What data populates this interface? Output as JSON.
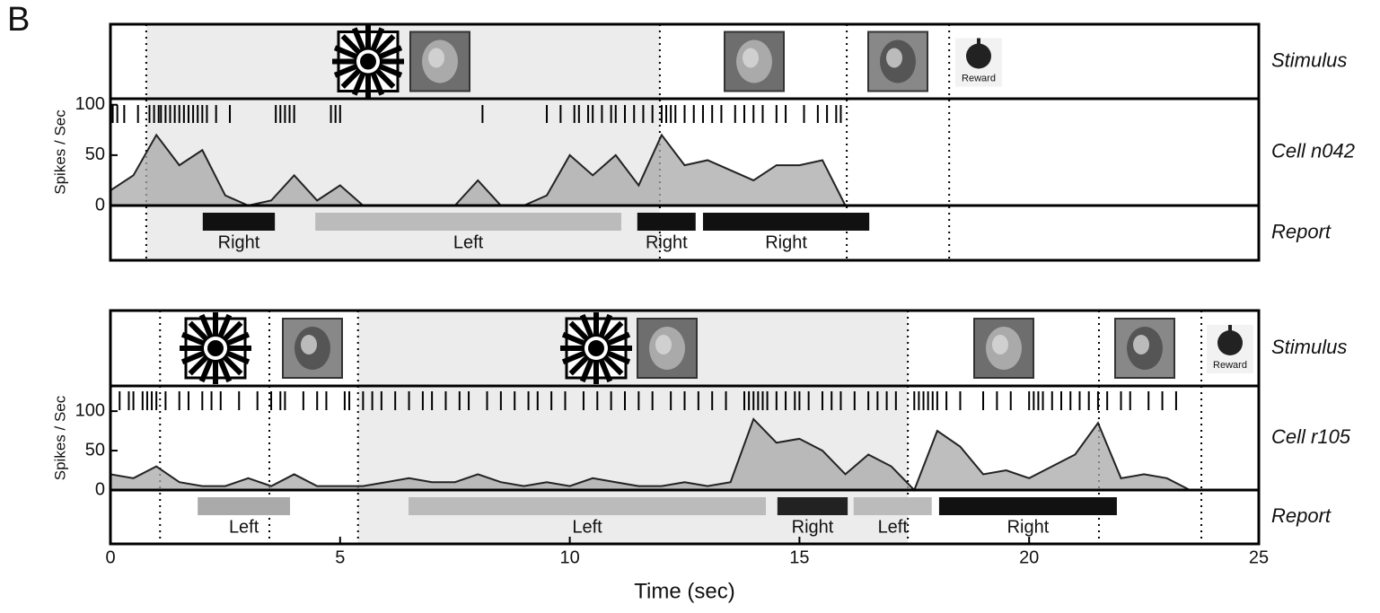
{
  "panel_label": "B",
  "chart_data": [
    {
      "type": "raster_rate",
      "row_labels": [
        "Stimulus",
        "Cell n042",
        "Report"
      ],
      "reward_label": "Reward",
      "ylabel": "Spikes / Sec",
      "xlim": [
        0,
        25
      ],
      "ylim": [
        0,
        106
      ],
      "yticks": [
        0,
        50,
        100
      ],
      "events": [
        0.78,
        11.96,
        16.03,
        18.26
      ],
      "shaded": [
        0.78,
        11.96
      ],
      "spikes": [
        0.05,
        0.15,
        0.3,
        0.6,
        0.85,
        0.95,
        1.05,
        1.1,
        1.2,
        1.3,
        1.4,
        1.5,
        1.6,
        1.7,
        1.8,
        1.9,
        2.0,
        2.1,
        2.3,
        2.6,
        3.6,
        3.7,
        3.8,
        3.9,
        4.0,
        4.8,
        4.9,
        5.0,
        8.1,
        9.5,
        9.8,
        10.1,
        10.2,
        10.4,
        10.5,
        10.7,
        10.9,
        11.0,
        11.2,
        11.4,
        11.6,
        11.8,
        12.0,
        12.1,
        12.2,
        12.3,
        12.5,
        12.7,
        12.9,
        13.1,
        13.3,
        13.6,
        13.8,
        14.0,
        14.2,
        14.5,
        14.7,
        15.1,
        15.4,
        15.6,
        15.8,
        15.9
      ],
      "rate": {
        "x": [
          0,
          0.5,
          1,
          1.5,
          2,
          2.5,
          3,
          3.5,
          4,
          4.5,
          5,
          5.5,
          6,
          6.5,
          7,
          7.5,
          8,
          8.5,
          9,
          9.5,
          10,
          10.5,
          11,
          11.5,
          12,
          12.5,
          13,
          13.5,
          14,
          14.5,
          15,
          15.5,
          16
        ],
        "values": [
          15,
          30,
          70,
          40,
          55,
          10,
          0,
          5,
          30,
          5,
          20,
          0,
          0,
          0,
          0,
          0,
          25,
          0,
          0,
          10,
          50,
          30,
          50,
          20,
          70,
          40,
          45,
          35,
          25,
          40,
          40,
          45,
          0
        ]
      },
      "reports": [
        {
          "label": "Right",
          "start": 2.01,
          "end": 3.58,
          "color": "#111111"
        },
        {
          "label": "Left",
          "start": 4.46,
          "end": 11.12,
          "color": "#bbbbbb"
        },
        {
          "label": "Right",
          "start": 11.47,
          "end": 12.74,
          "color": "#111111"
        },
        {
          "label": "Right",
          "start": 12.9,
          "end": 16.52,
          "color": "#111111"
        }
      ]
    },
    {
      "type": "raster_rate",
      "row_labels": [
        "Stimulus",
        "Cell r105",
        "Report"
      ],
      "reward_label": "Reward",
      "ylabel": "Spikes / Sec",
      "xlabel": "Time (sec)",
      "xlim": [
        0,
        25
      ],
      "xticks": [
        0,
        5,
        10,
        15,
        20,
        25
      ],
      "ylim": [
        0,
        132
      ],
      "yticks": [
        0,
        50,
        100
      ],
      "events": [
        1.08,
        3.46,
        5.39,
        17.36,
        21.52,
        23.75
      ],
      "shaded": [
        5.39,
        17.36
      ],
      "spikes": [
        0.2,
        0.4,
        0.5,
        0.7,
        0.8,
        0.9,
        1.0,
        1.2,
        1.5,
        1.7,
        2.0,
        2.2,
        2.4,
        2.8,
        3.2,
        3.5,
        3.7,
        3.8,
        4.2,
        4.5,
        4.7,
        5.1,
        5.2,
        5.5,
        5.7,
        5.9,
        6.2,
        6.5,
        6.8,
        7.0,
        7.3,
        7.6,
        7.8,
        8.2,
        8.5,
        8.8,
        9.1,
        9.3,
        9.6,
        9.9,
        10.3,
        10.6,
        10.9,
        11.2,
        11.5,
        11.8,
        12.2,
        12.5,
        12.8,
        13.1,
        13.4,
        13.8,
        13.9,
        14.0,
        14.1,
        14.2,
        14.3,
        14.5,
        14.7,
        14.9,
        15.0,
        15.2,
        15.5,
        15.7,
        15.9,
        16.2,
        16.5,
        16.7,
        16.9,
        17.1,
        17.5,
        17.6,
        17.7,
        17.8,
        17.9,
        18.0,
        18.2,
        18.5,
        19.0,
        19.3,
        19.6,
        20.0,
        20.1,
        20.2,
        20.3,
        20.5,
        20.7,
        20.9,
        21.1,
        21.3,
        21.5,
        21.7,
        22.0,
        22.2,
        22.6,
        22.9,
        23.2
      ],
      "rate": {
        "x": [
          0,
          0.5,
          1,
          1.5,
          2,
          2.5,
          3,
          3.5,
          4,
          4.5,
          5,
          5.5,
          6,
          6.5,
          7,
          7.5,
          8,
          8.5,
          9,
          9.5,
          10,
          10.5,
          11,
          11.5,
          12,
          12.5,
          13,
          13.5,
          14,
          14.5,
          15,
          15.5,
          16,
          16.5,
          17,
          17.5,
          18,
          18.5,
          19,
          19.5,
          20,
          20.5,
          21,
          21.5,
          22,
          22.5,
          23,
          23.5
        ],
        "values": [
          20,
          15,
          30,
          10,
          5,
          5,
          15,
          5,
          20,
          5,
          5,
          5,
          10,
          15,
          10,
          10,
          20,
          10,
          5,
          10,
          5,
          15,
          10,
          5,
          5,
          10,
          5,
          10,
          90,
          60,
          65,
          50,
          20,
          45,
          30,
          0,
          75,
          55,
          20,
          25,
          15,
          30,
          45,
          85,
          15,
          20,
          15,
          0
        ]
      },
      "reports": [
        {
          "label": "Left",
          "start": 1.9,
          "end": 3.91,
          "color": "#aaaaaa"
        },
        {
          "label": "Left",
          "start": 6.49,
          "end": 14.27,
          "color": "#bbbbbb"
        },
        {
          "label": "Right",
          "start": 14.52,
          "end": 16.05,
          "color": "#222222"
        },
        {
          "label": "Left",
          "start": 16.18,
          "end": 17.88,
          "color": "#bbbbbb"
        },
        {
          "label": "Right",
          "start": 18.04,
          "end": 21.91,
          "color": "#111111"
        }
      ]
    }
  ]
}
